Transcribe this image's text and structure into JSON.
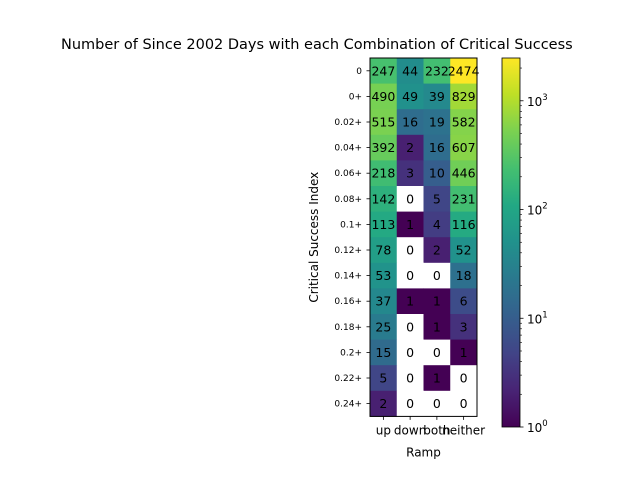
{
  "chart_data": {
    "type": "heatmap",
    "title": "Number of Since 2002 Days with each Combination of Critical Success",
    "xlabel": "Ramp",
    "ylabel": "Critical Success Index",
    "x_categories": [
      "up",
      "down",
      "both",
      "neither"
    ],
    "y_categories": [
      "0",
      "0+",
      "0.02+",
      "0.04+",
      "0.06+",
      "0.08+",
      "0.1+",
      "0.12+",
      "0.14+",
      "0.16+",
      "0.18+",
      "0.2+",
      "0.22+",
      "0.24+"
    ],
    "values": [
      [
        247,
        44,
        232,
        2474
      ],
      [
        490,
        49,
        39,
        829
      ],
      [
        515,
        16,
        19,
        582
      ],
      [
        392,
        2,
        16,
        607
      ],
      [
        218,
        3,
        10,
        446
      ],
      [
        142,
        0,
        5,
        231
      ],
      [
        113,
        1,
        4,
        116
      ],
      [
        78,
        0,
        2,
        52
      ],
      [
        53,
        0,
        0,
        18
      ],
      [
        37,
        1,
        1,
        6
      ],
      [
        25,
        0,
        1,
        3
      ],
      [
        15,
        0,
        0,
        1
      ],
      [
        5,
        0,
        1,
        0
      ],
      [
        2,
        0,
        0,
        0
      ]
    ],
    "color_scale": "log",
    "colormap": "viridis",
    "zero_color": "#ffffff",
    "colorbar": {
      "range": [
        1,
        2474
      ],
      "ticks": [
        {
          "value": 1,
          "base": "10",
          "exp": "0"
        },
        {
          "value": 10,
          "base": "10",
          "exp": "1"
        },
        {
          "value": 100,
          "base": "10",
          "exp": "2"
        },
        {
          "value": 1000,
          "base": "10",
          "exp": "3"
        }
      ]
    }
  }
}
